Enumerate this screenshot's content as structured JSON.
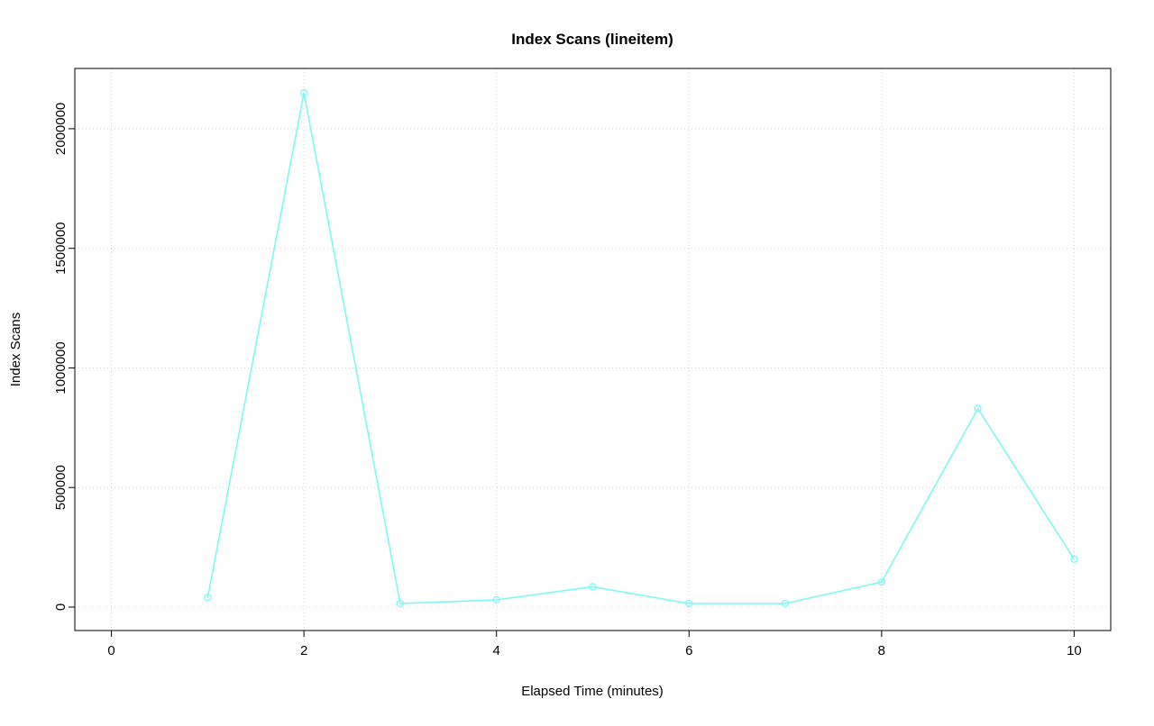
{
  "page": {
    "background": "#ffffff"
  },
  "chart_data": {
    "type": "line",
    "title": "Index Scans (lineitem)",
    "xlabel": "Elapsed Time (minutes)",
    "ylabel": "Index Scans",
    "x": [
      1,
      2,
      3,
      4,
      5,
      6,
      7,
      8,
      9,
      10
    ],
    "values": [
      40000,
      2150000,
      15000,
      30000,
      85000,
      15000,
      15000,
      105000,
      830000,
      200000
    ],
    "series_name": "index_scans",
    "xlim": [
      -0.38,
      10.38
    ],
    "ylim": [
      -98000,
      2252000
    ],
    "xticks": [
      0,
      2,
      4,
      6,
      8,
      10
    ],
    "xtick_labels": [
      "0",
      "2",
      "4",
      "6",
      "8",
      "10"
    ],
    "yticks": [
      0,
      500000,
      1000000,
      1500000,
      2000000
    ],
    "ytick_labels": [
      "0",
      "500000",
      "1000000",
      "1500000",
      "2000000"
    ],
    "grid": true,
    "legend": "none",
    "marker": "open-circle",
    "colors": {
      "line": "#7df8f8",
      "marker": "#7df8f8",
      "grid": "#d4d4d4",
      "box": "#000000",
      "text": "#000000"
    }
  }
}
